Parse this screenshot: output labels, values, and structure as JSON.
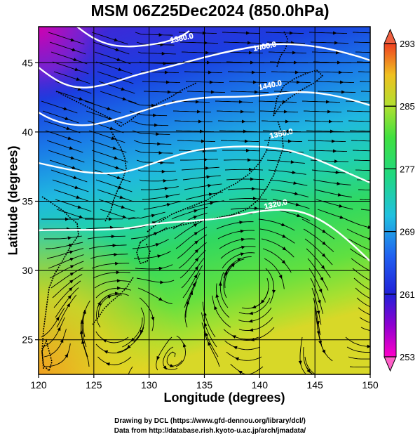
{
  "title": "MSM 06Z25Dec2024 (850.0hPa)",
  "xlabel": "Longitude (degrees)",
  "ylabel": "Latitude  (degrees)",
  "credit_line1": "Drawing by DCL (https://www.gfd-dennou.org/library/dcl/)",
  "credit_line2": "Data from http://database.rish.kyoto-u.ac.jp/arch/jmadata/",
  "chart_data": {
    "type": "heatmap",
    "x_ticks": [
      "120",
      "125",
      "130",
      "135",
      "140",
      "145",
      "150"
    ],
    "y_ticks": [
      "25",
      "30",
      "35",
      "40",
      "45"
    ],
    "xlim": [
      120,
      150
    ],
    "ylim": [
      22.5,
      47.6
    ],
    "colorbar": {
      "ticks": [
        "253",
        "261",
        "269",
        "277",
        "285",
        "293"
      ],
      "range": [
        253,
        293
      ]
    },
    "contours": [
      {
        "label": "1320.0",
        "lon": 141.5,
        "lat": 34.6
      },
      {
        "label": "1350.0",
        "lon": 142.0,
        "lat": 39.7
      },
      {
        "label": "1440.0",
        "lon": 141.0,
        "lat": 43.2
      },
      {
        "label": "1380.0",
        "lon": 133.0,
        "lat": 46.6
      },
      {
        "label": "1400.0",
        "lon": 140.5,
        "lat": 46.0
      }
    ],
    "colors": {
      "cold": "#c000c0",
      "cool": "#2040e0",
      "mid": "#20c8c0",
      "warm": "#40d840",
      "hot": "#f0a020"
    }
  }
}
